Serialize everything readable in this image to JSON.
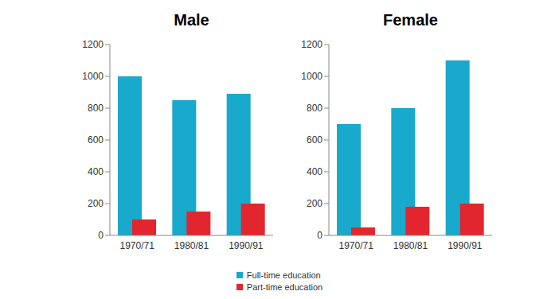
{
  "chart_data": [
    {
      "type": "bar",
      "title": "Male",
      "categories": [
        "1970/71",
        "1980/81",
        "1990/91"
      ],
      "series": [
        {
          "name": "Full-time education",
          "color": "#18a9cc",
          "values": [
            1000,
            850,
            890
          ]
        },
        {
          "name": "Part-time education",
          "color": "#e3262d",
          "values": [
            100,
            150,
            200
          ]
        }
      ],
      "ylim": [
        0,
        1200
      ],
      "yticks": [
        0,
        200,
        400,
        600,
        800,
        1000,
        1200
      ],
      "grid": false,
      "legend": "bottom"
    },
    {
      "type": "bar",
      "title": "Female",
      "categories": [
        "1970/71",
        "1980/81",
        "1990/91"
      ],
      "series": [
        {
          "name": "Full-time education",
          "color": "#18a9cc",
          "values": [
            700,
            800,
            1100
          ]
        },
        {
          "name": "Part-time education",
          "color": "#e3262d",
          "values": [
            50,
            180,
            200
          ]
        }
      ],
      "ylim": [
        0,
        1200
      ],
      "yticks": [
        0,
        200,
        400,
        600,
        800,
        1000,
        1200
      ],
      "grid": false
    }
  ]
}
